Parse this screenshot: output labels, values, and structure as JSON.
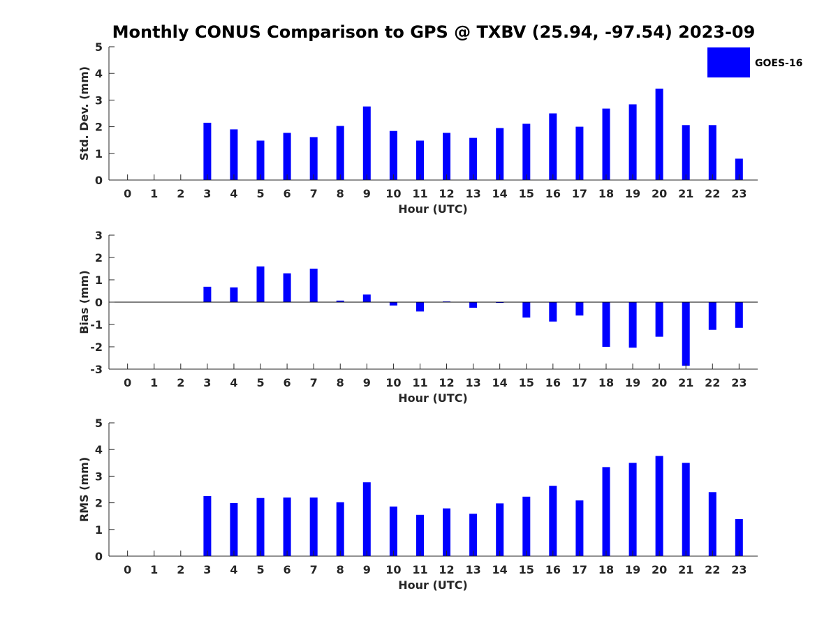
{
  "title": "Monthly CONUS Comparison to GPS @ TXBV (25.94, -97.54) 2023-09",
  "legend": {
    "label": "GOES-16",
    "color": "#0000ff",
    "placement": "top-right"
  },
  "colors": {
    "bar": "#0000ff",
    "axis": "#262626"
  },
  "chart_data": [
    {
      "type": "bar",
      "xlabel": "Hour (UTC)",
      "ylabel": "Std. Dev. (mm)",
      "ylim": [
        0,
        5
      ],
      "yticks": [
        0,
        1,
        2,
        3,
        4,
        5
      ],
      "categories": [
        "0",
        "1",
        "2",
        "3",
        "4",
        "5",
        "6",
        "7",
        "8",
        "9",
        "10",
        "11",
        "12",
        "13",
        "14",
        "15",
        "16",
        "17",
        "18",
        "19",
        "20",
        "21",
        "22",
        "23"
      ],
      "series": [
        {
          "name": "GOES-16",
          "values": [
            null,
            null,
            null,
            2.15,
            1.9,
            1.48,
            1.77,
            1.61,
            2.03,
            2.76,
            1.84,
            1.48,
            1.77,
            1.58,
            1.95,
            2.11,
            2.5,
            2.0,
            2.68,
            2.84,
            3.43,
            2.06,
            2.06,
            0.8
          ]
        }
      ],
      "grid": false
    },
    {
      "type": "bar",
      "xlabel": "Hour (UTC)",
      "ylabel": "Bias (mm)",
      "ylim": [
        -3,
        3
      ],
      "yticks": [
        -3,
        -2,
        -1,
        0,
        1,
        2,
        3
      ],
      "categories": [
        "0",
        "1",
        "2",
        "3",
        "4",
        "5",
        "6",
        "7",
        "8",
        "9",
        "10",
        "11",
        "12",
        "13",
        "14",
        "15",
        "16",
        "17",
        "18",
        "19",
        "20",
        "21",
        "22",
        "23"
      ],
      "series": [
        {
          "name": "GOES-16",
          "values": [
            null,
            null,
            null,
            0.69,
            0.66,
            1.6,
            1.29,
            1.5,
            0.07,
            0.34,
            -0.15,
            -0.42,
            0.03,
            -0.25,
            -0.03,
            -0.69,
            -0.87,
            -0.6,
            -2.0,
            -2.04,
            -1.55,
            -2.85,
            -1.24,
            -1.15
          ]
        }
      ],
      "grid": false
    },
    {
      "type": "bar",
      "xlabel": "Hour (UTC)",
      "ylabel": "RMS (mm)",
      "ylim": [
        0,
        5
      ],
      "yticks": [
        0,
        1,
        2,
        3,
        4,
        5
      ],
      "categories": [
        "0",
        "1",
        "2",
        "3",
        "4",
        "5",
        "6",
        "7",
        "8",
        "9",
        "10",
        "11",
        "12",
        "13",
        "14",
        "15",
        "16",
        "17",
        "18",
        "19",
        "20",
        "21",
        "22",
        "23"
      ],
      "series": [
        {
          "name": "GOES-16",
          "values": [
            null,
            null,
            null,
            2.25,
            1.99,
            2.18,
            2.2,
            2.2,
            2.02,
            2.77,
            1.86,
            1.55,
            1.79,
            1.59,
            1.98,
            2.23,
            2.64,
            2.09,
            3.34,
            3.5,
            3.76,
            3.5,
            2.4,
            1.39
          ]
        }
      ],
      "grid": false
    }
  ]
}
